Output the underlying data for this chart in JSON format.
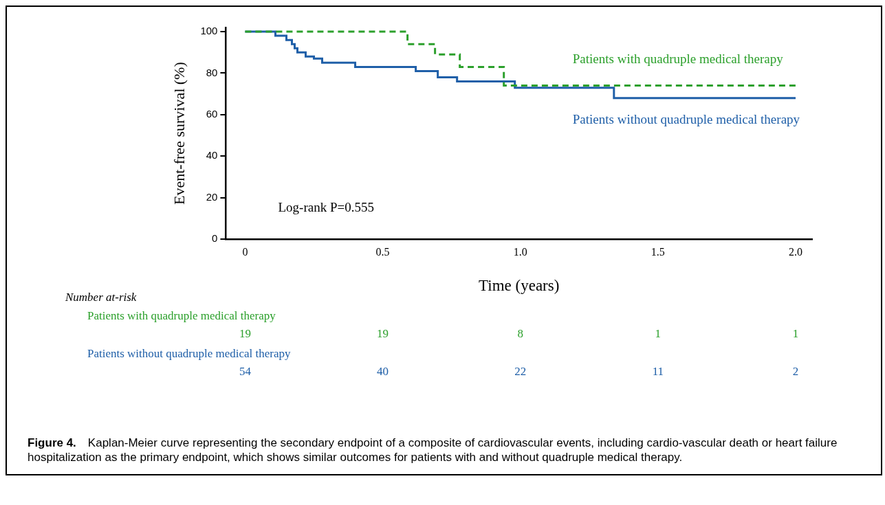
{
  "chart_data": {
    "type": "step",
    "xlabel": "Time (years)",
    "ylabel": "Event-free survival (%)",
    "xlim": [
      -0.07,
      2.06
    ],
    "xticks": [
      0,
      0.5,
      {
        "value": 1,
        "label": "1.0"
      },
      1.5,
      {
        "value": 2,
        "label": "2.0"
      }
    ],
    "ylim": [
      0,
      102
    ],
    "yticks": [
      0,
      20,
      40,
      60,
      80,
      100
    ],
    "grid": false,
    "legend": false,
    "marker": "none",
    "series": [
      {
        "name": "Patients with quadruple medical therapy",
        "color": "#2ca02c",
        "line_style": "dashed",
        "x": [
          0,
          0.59,
          0.69,
          0.78,
          0.94,
          2.0
        ],
        "values": [
          100,
          94,
          89,
          83,
          74,
          74
        ]
      },
      {
        "name": "Patients without quadruple medical therapy",
        "color": "#1f5fa8",
        "line_style": "solid",
        "x": [
          0,
          0.11,
          0.15,
          0.17,
          0.18,
          0.19,
          0.22,
          0.25,
          0.28,
          0.4,
          0.62,
          0.7,
          0.77,
          0.98,
          1.34,
          2.0
        ],
        "values": [
          100,
          98,
          96,
          94,
          92,
          90,
          88,
          87,
          85,
          83,
          81,
          78,
          76,
          73,
          68,
          68
        ]
      }
    ],
    "annotations": [
      "Log-rank P=0.555",
      "Number at-risk",
      "Patients with quadruple medical therapy",
      "19",
      "19",
      "8",
      "1",
      "1",
      "Patients without quadruple medical therapy",
      "54",
      "40",
      "22",
      "11",
      "2",
      "Figure 4.",
      "Kaplan-Meier curve representing the secondary endpoint of a composite of cardiovascular events, including cardio-vascular death or heart failure hospitalization as the primary endpoint, which shows similar outcomes for patients with and without quadruple medical therapy."
    ]
  }
}
